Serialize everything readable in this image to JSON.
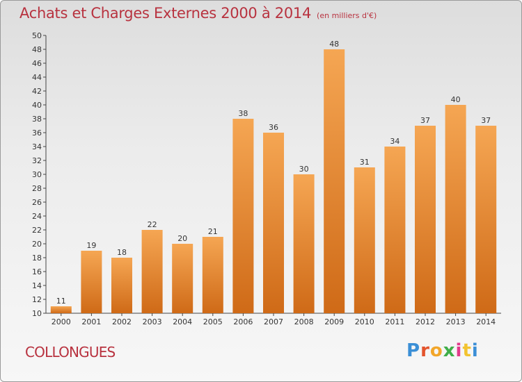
{
  "chart_data": {
    "type": "bar",
    "title": "Achats et Charges Externes 2000 à 2014",
    "subtitle": "(en milliers d'€)",
    "categories": [
      "2000",
      "2001",
      "2002",
      "2003",
      "2004",
      "2005",
      "2006",
      "2007",
      "2008",
      "2009",
      "2010",
      "2011",
      "2012",
      "2013",
      "2014"
    ],
    "values": [
      11,
      19,
      18,
      22,
      20,
      21,
      38,
      36,
      30,
      48,
      31,
      34,
      37,
      40,
      37
    ],
    "ylim": [
      10,
      50
    ],
    "ytick_step": 2,
    "grid": false,
    "legend": "none",
    "bar_color_top": "#f5a653",
    "bar_color_bottom": "#cf6a17"
  },
  "commune_name": "COLLONGUES",
  "brand": {
    "letters": [
      "P",
      "r",
      "o",
      "x",
      "i",
      "t",
      "i"
    ],
    "colors": [
      "#3b8fd6",
      "#e3542d",
      "#f2a62a",
      "#3fae49",
      "#e23b8b",
      "#f2c330",
      "#3b8fd6"
    ]
  }
}
